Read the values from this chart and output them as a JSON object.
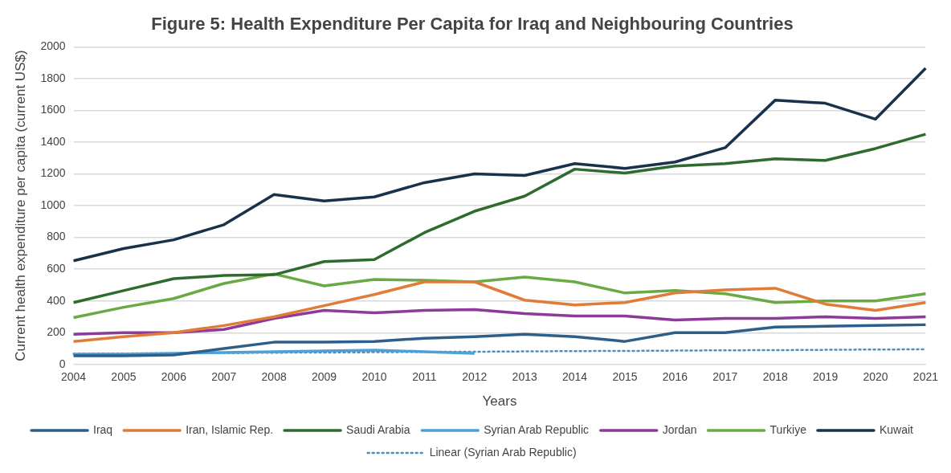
{
  "chart_data": {
    "type": "line",
    "title": "Figure 5: Health Expenditure Per Capita for Iraq and Neighbouring Countries",
    "xlabel": "Years",
    "ylabel": "Current health expenditure per capita (current US$)",
    "categories": [
      "2004",
      "2005",
      "2006",
      "2007",
      "2008",
      "2009",
      "2010",
      "2011",
      "2012",
      "2013",
      "2014",
      "2015",
      "2016",
      "2017",
      "2018",
      "2019",
      "2020",
      "2021"
    ],
    "series": [
      {
        "name": "Iraq",
        "color": "#2e5f8a",
        "values": [
          55,
          55,
          60,
          100,
          140,
          140,
          145,
          165,
          175,
          190,
          175,
          145,
          200,
          200,
          235,
          240,
          245,
          250
        ]
      },
      {
        "name": "Iran, Islamic Rep.",
        "color": "#e07b39",
        "values": [
          145,
          175,
          200,
          245,
          300,
          370,
          440,
          520,
          520,
          405,
          375,
          390,
          450,
          470,
          480,
          380,
          340,
          390
        ]
      },
      {
        "name": "Saudi Arabia",
        "color": "#2e6b2e",
        "values": [
          390,
          465,
          540,
          560,
          565,
          648,
          660,
          830,
          965,
          1060,
          1230,
          1205,
          1250,
          1265,
          1295,
          1285,
          1360,
          1450
        ]
      },
      {
        "name": "Syrian Arab Republic",
        "color": "#4ea0d8",
        "values": [
          65,
          65,
          70,
          75,
          80,
          85,
          90,
          80,
          70,
          null,
          null,
          null,
          null,
          null,
          null,
          null,
          null,
          null
        ]
      },
      {
        "name": "Jordan",
        "color": "#8e3a9b",
        "values": [
          190,
          200,
          200,
          220,
          290,
          340,
          325,
          340,
          345,
          320,
          305,
          305,
          280,
          290,
          290,
          300,
          290,
          300
        ]
      },
      {
        "name": "Turkiye",
        "color": "#6aaa44",
        "values": [
          295,
          360,
          415,
          510,
          570,
          495,
          535,
          530,
          520,
          550,
          520,
          450,
          465,
          445,
          390,
          400,
          400,
          445
        ]
      },
      {
        "name": "Kuwait",
        "color": "#17324a",
        "values": [
          653,
          730,
          785,
          880,
          1070,
          1030,
          1055,
          1145,
          1200,
          1190,
          1265,
          1235,
          1275,
          1365,
          1665,
          1645,
          1545,
          1865
        ]
      },
      {
        "name": "Linear (Syrian Arab Republic)",
        "color": "#4e8fb8",
        "line_style": "dotted",
        "values": [
          67,
          69,
          70,
          72,
          74,
          75,
          77,
          79,
          80,
          82,
          84,
          85,
          87,
          89,
          90,
          92,
          94,
          95
        ]
      }
    ],
    "ylim": [
      0,
      2000
    ],
    "yticks": [
      0,
      200,
      400,
      600,
      800,
      1000,
      1200,
      1400,
      1600,
      1800,
      2000
    ],
    "grid": "y",
    "legend": "bottom",
    "marker": "none",
    "line_style": "solid"
  }
}
